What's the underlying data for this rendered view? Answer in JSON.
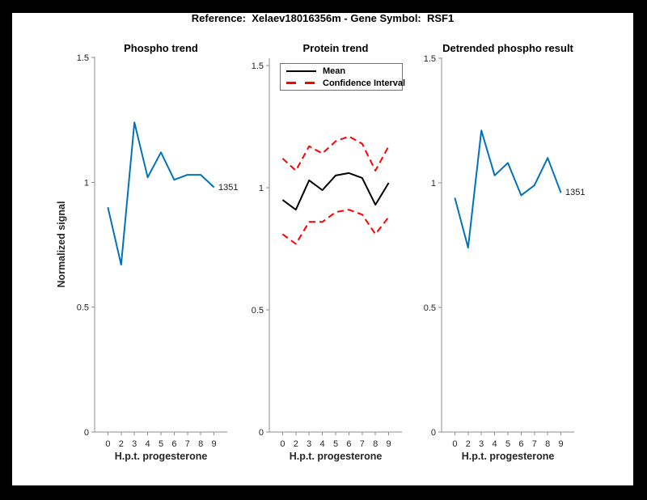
{
  "header": {
    "title": "Reference:  Xelaev18016356m - Gene Symbol:  RSF1"
  },
  "colors": {
    "line_blue": "#0072BD",
    "ci_red": "#FF0000",
    "mean_black": "#000000",
    "figure_bg": "#FFFFFF",
    "window_border": "#000000"
  },
  "chart_data": [
    {
      "type": "line",
      "title": "Phospho trend",
      "xlabel": "H.p.t. progesterone",
      "ylabel": "Normalized signal",
      "x_ticklabels": [
        "0",
        "2",
        "3",
        "4",
        "5",
        "6",
        "7",
        "8",
        "9"
      ],
      "y_ticks": [
        0,
        0.5,
        1,
        1.5
      ],
      "y_ticklabels": [
        "0",
        "0.5",
        "1",
        "1.5"
      ],
      "ylim": [
        0,
        1.5
      ],
      "grid": false,
      "end_label": "1351",
      "series": [
        {
          "name": "1351",
          "color": "#0072BD",
          "style": "solid",
          "values": [
            0.9,
            0.67,
            1.24,
            1.02,
            1.12,
            1.01,
            1.03,
            1.03,
            0.98
          ]
        }
      ]
    },
    {
      "type": "line",
      "title": "Protein trend",
      "xlabel": "H.p.t. progesterone",
      "ylabel": "",
      "x_ticklabels": [
        "0",
        "2",
        "3",
        "4",
        "5",
        "6",
        "7",
        "8",
        "9"
      ],
      "y_ticks": [
        0,
        0.5,
        1,
        1.5
      ],
      "y_ticklabels": [
        "0",
        "0.5",
        "1",
        "1.5"
      ],
      "ylim": [
        0,
        1.5
      ],
      "grid": false,
      "legend": [
        "Mean",
        "Confidence Interval"
      ],
      "legend_position": "northeast",
      "series": [
        {
          "name": "Confidence Interval",
          "color": "#FF0000",
          "style": "dashed",
          "values": [
            1.12,
            1.07,
            1.17,
            1.14,
            1.19,
            1.21,
            1.18,
            1.07,
            1.17
          ]
        },
        {
          "name": "Confidence Interval",
          "color": "#FF0000",
          "style": "dashed",
          "values": [
            0.81,
            0.77,
            0.86,
            0.86,
            0.9,
            0.91,
            0.89,
            0.81,
            0.88
          ]
        },
        {
          "name": "Mean",
          "color": "#000000",
          "style": "solid",
          "values": [
            0.95,
            0.91,
            1.03,
            0.99,
            1.05,
            1.06,
            1.04,
            0.93,
            1.02
          ]
        }
      ]
    },
    {
      "type": "line",
      "title": "Detrended phospho result",
      "xlabel": "H.p.t. progesterone",
      "ylabel": "",
      "x_ticklabels": [
        "0",
        "2",
        "3",
        "4",
        "5",
        "6",
        "7",
        "8",
        "9"
      ],
      "y_ticks": [
        0,
        0.5,
        1,
        1.5
      ],
      "y_ticklabels": [
        "0",
        "0.5",
        "1",
        "1.5"
      ],
      "ylim": [
        0,
        1.5
      ],
      "grid": false,
      "end_label": "1351",
      "series": [
        {
          "name": "1351",
          "color": "#0072BD",
          "style": "solid",
          "values": [
            0.94,
            0.74,
            1.21,
            1.03,
            1.08,
            0.95,
            0.99,
            1.1,
            0.96
          ]
        }
      ]
    }
  ]
}
